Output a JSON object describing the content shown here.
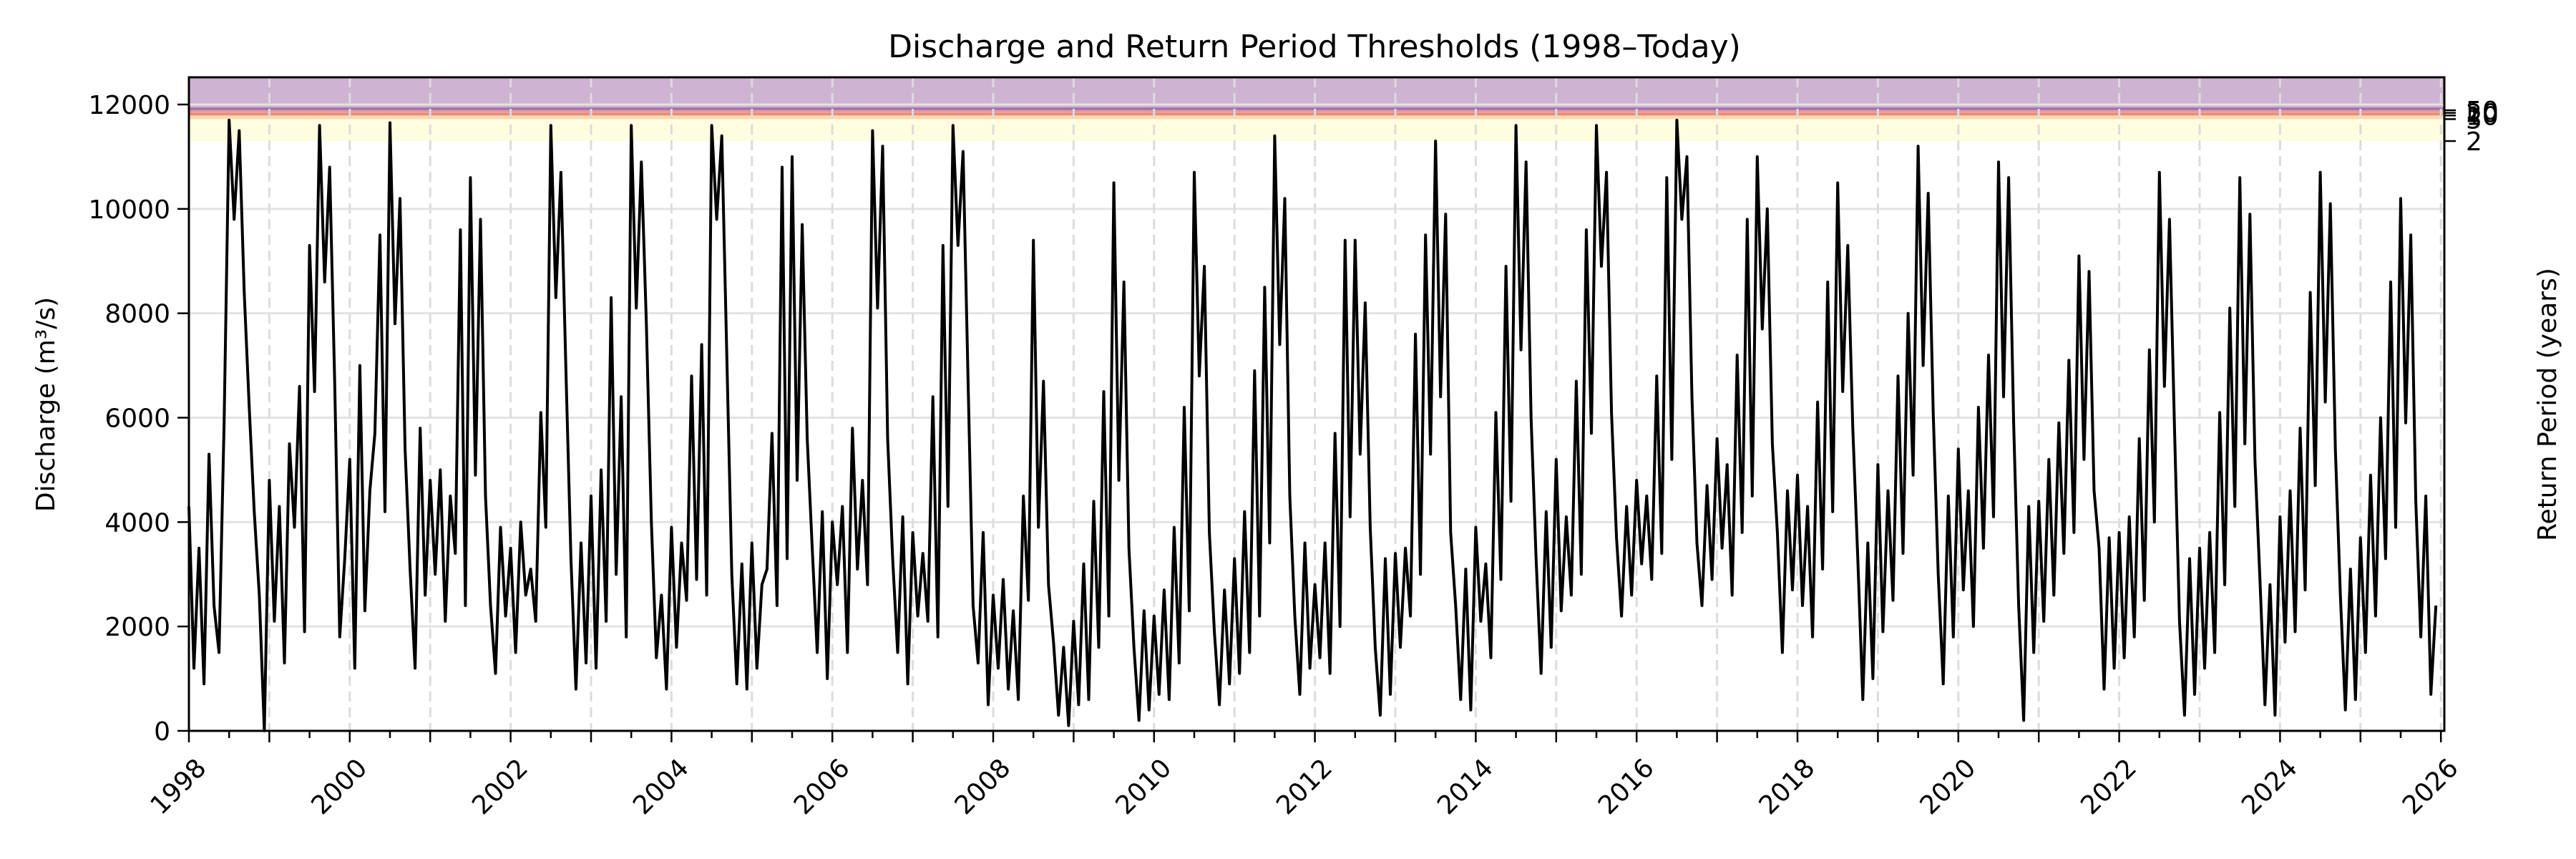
{
  "chart_data": {
    "type": "line",
    "title": "Discharge and Return Period Thresholds (1998–Today)",
    "xlabel": "",
    "ylabel": "Discharge (m³/s)",
    "y2label": "Return Period (years)",
    "xlim": [
      1998.0,
      2026.05
    ],
    "ylim": [
      0,
      12520
    ],
    "grid": true,
    "x_tick_labels": [
      "1998",
      "2000",
      "2002",
      "2004",
      "2006",
      "2008",
      "2010",
      "2012",
      "2014",
      "2016",
      "2018",
      "2020",
      "2022",
      "2024",
      "2026"
    ],
    "x_tick_values": [
      1998,
      2000,
      2002,
      2004,
      2006,
      2008,
      2010,
      2012,
      2014,
      2016,
      2018,
      2020,
      2022,
      2024,
      2026
    ],
    "y_ticks": [
      0,
      2000,
      4000,
      6000,
      8000,
      10000,
      12000
    ],
    "y_tick_labels": [
      "0",
      "2000",
      "4000",
      "6000",
      "8000",
      "10000",
      "12000"
    ],
    "return_periods": [
      {
        "label": "2",
        "threshold": 11300,
        "color": "#fffde0"
      },
      {
        "label": "5",
        "threshold": 11720,
        "color": "#fdd9b0"
      },
      {
        "label": "10",
        "threshold": 11790,
        "color": "#f08a72"
      },
      {
        "label": "20",
        "threshold": 11840,
        "color": "#e29da0"
      },
      {
        "label": "50",
        "threshold": 11890,
        "color": "#a877ad"
      }
    ],
    "above_max_band_color": "#cfb3d2",
    "series": [
      {
        "name": "Discharge",
        "color": "#000000",
        "start_year": 1998.0,
        "step_years": 0.0625,
        "values": [
          4300,
          1200,
          3500,
          900,
          5300,
          2400,
          1500,
          5900,
          11700,
          9800,
          11500,
          8400,
          6200,
          4200,
          2600,
          0,
          4800,
          2100,
          4300,
          1300,
          5500,
          3900,
          6600,
          1900,
          9300,
          6500,
          11600,
          8600,
          10800,
          6700,
          1800,
          3300,
          5200,
          1200,
          7000,
          2300,
          4600,
          5700,
          9500,
          4200,
          11650,
          7800,
          10200,
          5400,
          3100,
          1200,
          5800,
          2600,
          4800,
          3000,
          5000,
          2100,
          4500,
          3400,
          9600,
          2400,
          10600,
          4900,
          9800,
          4500,
          2400,
          1100,
          3900,
          2200,
          3500,
          1500,
          4000,
          2600,
          3100,
          2100,
          6100,
          3900,
          11600,
          8300,
          10700,
          6900,
          3300,
          800,
          3600,
          1300,
          4500,
          1200,
          5000,
          2100,
          8300,
          3000,
          6400,
          1800,
          11600,
          8100,
          10900,
          7800,
          4000,
          1400,
          2600,
          800,
          3900,
          1600,
          3600,
          2500,
          6800,
          2900,
          7400,
          2600,
          11600,
          9800,
          11400,
          7200,
          3000,
          900,
          3200,
          800,
          3600,
          1200,
          2800,
          3100,
          5700,
          2400,
          10800,
          3300,
          11000,
          4800,
          9700,
          5600,
          3500,
          1500,
          4200,
          1000,
          4000,
          2800,
          4300,
          1500,
          5800,
          3100,
          4800,
          2800,
          11500,
          8100,
          11200,
          5600,
          3300,
          1500,
          4100,
          900,
          3800,
          2200,
          3400,
          2100,
          6400,
          1800,
          9300,
          4300,
          11600,
          9300,
          11100,
          6700,
          2400,
          1300,
          3800,
          500,
          2600,
          1200,
          2900,
          800,
          2300,
          600,
          4500,
          2500,
          9400,
          3900,
          6700,
          2800,
          1700,
          300,
          1600,
          100,
          2100,
          500,
          3200,
          600,
          4400,
          1600,
          6500,
          2200,
          10500,
          4800,
          8600,
          3500,
          1600,
          200,
          2300,
          400,
          2200,
          700,
          2700,
          600,
          3900,
          1300,
          6200,
          2300,
          10700,
          6800,
          8900,
          3800,
          1900,
          500,
          2700,
          900,
          3300,
          1100,
          4200,
          1500,
          6900,
          2200,
          8500,
          3600,
          11400,
          7400,
          10200,
          4500,
          2200,
          700,
          3600,
          1200,
          2800,
          1400,
          3600,
          1100,
          5700,
          2000,
          9400,
          4100,
          9400,
          5300,
          8200,
          3900,
          1600,
          300,
          3300,
          700,
          3400,
          1600,
          3500,
          2200,
          7600,
          3000,
          9500,
          5300,
          11300,
          6400,
          9900,
          3800,
          2400,
          600,
          3100,
          400,
          3900,
          2100,
          3200,
          1400,
          6100,
          2900,
          8900,
          4400,
          11600,
          7300,
          10900,
          6000,
          3300,
          1100,
          4200,
          1600,
          5200,
          2300,
          4100,
          2600,
          6700,
          3000,
          9600,
          5700,
          11600,
          8900,
          10700,
          6100,
          3700,
          2200,
          4300,
          2600,
          4800,
          3200,
          4500,
          2900,
          6800,
          3400,
          10600,
          5200,
          11700,
          9800,
          11000,
          6400,
          3600,
          2400,
          4700,
          2900,
          5600,
          3500,
          5100,
          2600,
          7200,
          3800,
          9800,
          4500,
          11000,
          7700,
          10000,
          5500,
          3800,
          1500,
          4600,
          2700,
          4900,
          2400,
          4300,
          1800,
          6300,
          3100,
          8600,
          4200,
          10500,
          6500,
          9300,
          5800,
          3300,
          600,
          3600,
          1000,
          5100,
          1900,
          4600,
          2500,
          6800,
          3400,
          8000,
          4900,
          11200,
          7000,
          10300,
          6100,
          3000,
          900,
          4500,
          1800,
          5400,
          2700,
          4600,
          2000,
          6200,
          3500,
          7200,
          4100,
          10900,
          6400,
          10600,
          5900,
          2400,
          200,
          4300,
          1500,
          4400,
          2100,
          5200,
          2600,
          5900,
          3400,
          7100,
          3800,
          9100,
          5200,
          8800,
          4600,
          3500,
          800,
          3700,
          1200,
          3800,
          1400,
          4100,
          1800,
          5600,
          2500,
          7300,
          4000,
          10700,
          6600,
          9800,
          5800,
          2100,
          300,
          3300,
          700,
          3500,
          1200,
          3800,
          1500,
          6100,
          2800,
          8100,
          4300,
          10600,
          5500,
          9900,
          5200,
          2900,
          500,
          2800,
          300,
          4100,
          1700,
          4600,
          1900,
          5800,
          2700,
          8400,
          4700,
          10700,
          6300,
          10100,
          5400,
          2600,
          400,
          3100,
          600,
          3700,
          1500,
          4900,
          2200,
          6000,
          3300,
          8600,
          3900,
          10200,
          5900,
          9500,
          4400,
          1800,
          4500,
          700,
          2400
        ]
      }
    ]
  },
  "title": "Discharge and Return Period Thresholds (1998–Today)",
  "ylabel": "Discharge (m³/s)",
  "y2label": "Return Period (years)"
}
